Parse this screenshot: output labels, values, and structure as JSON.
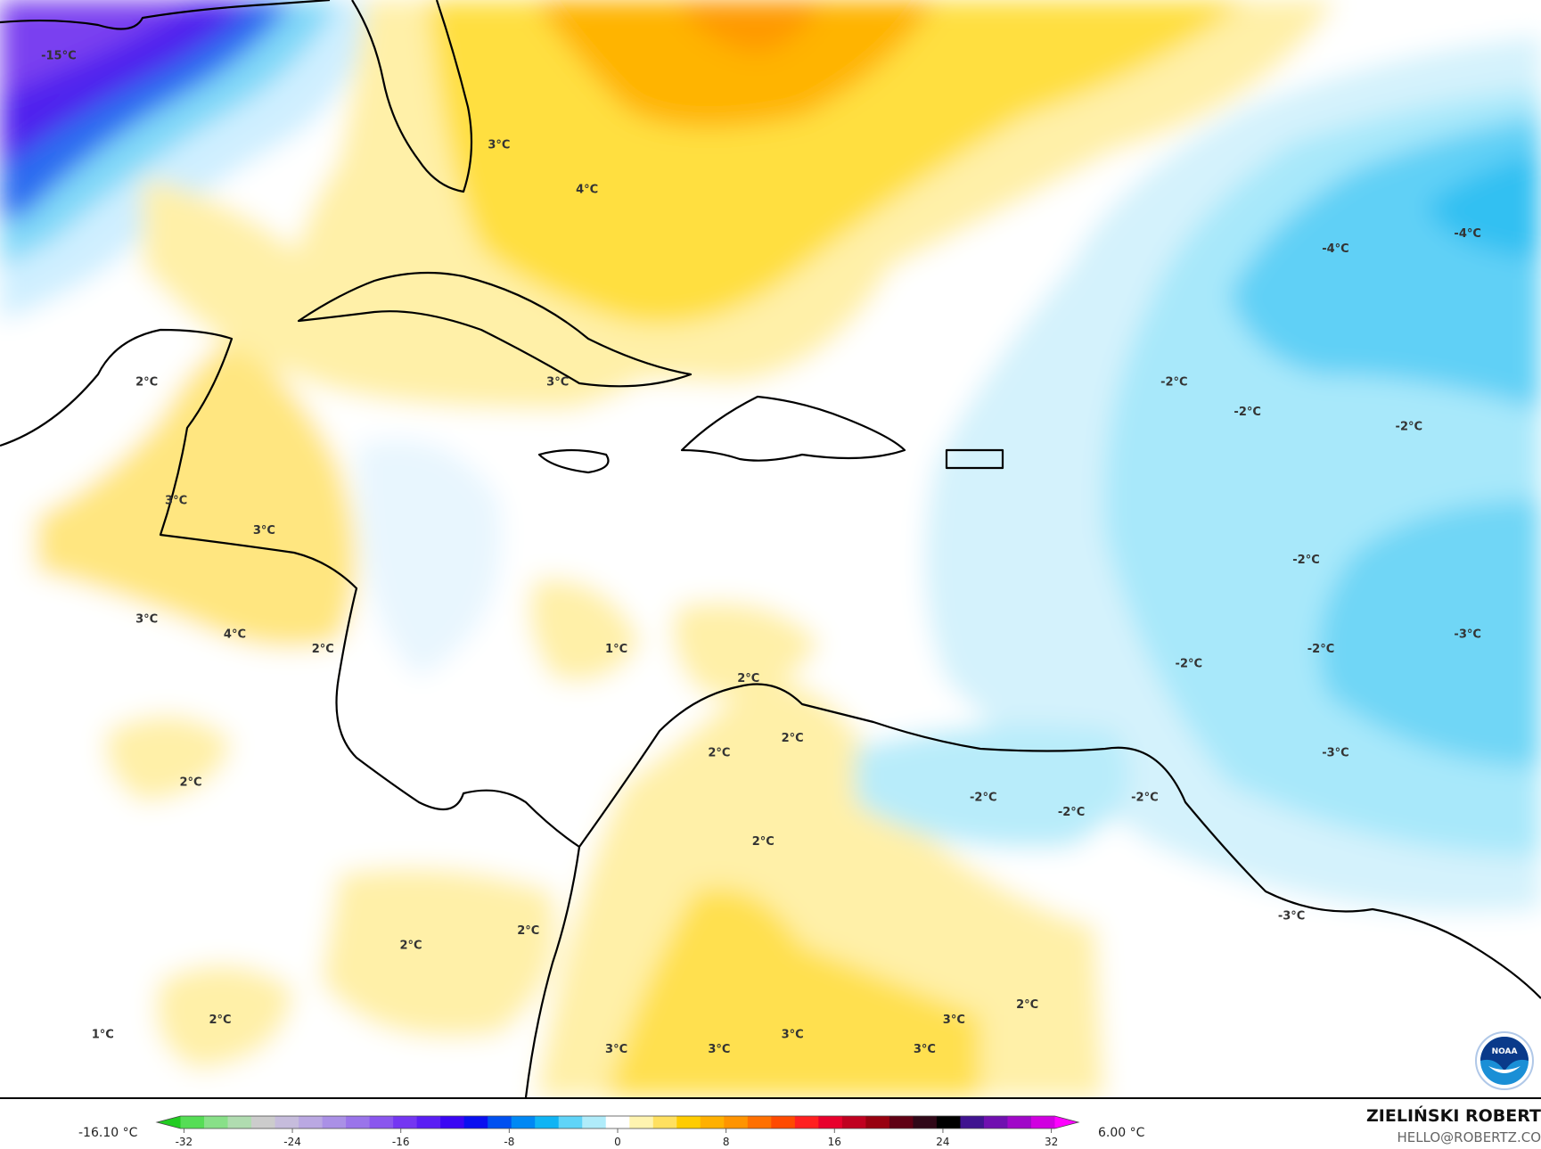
{
  "map": {
    "labels": [
      {
        "text": "-15°C",
        "lon": -96.5,
        "lat": 31.5
      },
      {
        "text": "3°C",
        "lon": -81.5,
        "lat": 28.5
      },
      {
        "text": "4°C",
        "lon": -78.5,
        "lat": 27.0
      },
      {
        "text": "2°C",
        "lon": -93.5,
        "lat": 20.5
      },
      {
        "text": "3°C",
        "lon": -79.5,
        "lat": 20.5
      },
      {
        "text": "3°C",
        "lon": -92.5,
        "lat": 16.5
      },
      {
        "text": "3°C",
        "lon": -89.5,
        "lat": 15.5
      },
      {
        "text": "3°C",
        "lon": -93.5,
        "lat": 12.5
      },
      {
        "text": "4°C",
        "lon": -90.5,
        "lat": 12.0
      },
      {
        "text": "2°C",
        "lon": -87.5,
        "lat": 11.5
      },
      {
        "text": "1°C",
        "lon": -77.5,
        "lat": 11.5
      },
      {
        "text": "2°C",
        "lon": -73.0,
        "lat": 10.5
      },
      {
        "text": "2°C",
        "lon": -74.0,
        "lat": 8.0
      },
      {
        "text": "2°C",
        "lon": -71.5,
        "lat": 8.5
      },
      {
        "text": "2°C",
        "lon": -92.0,
        "lat": 7.0
      },
      {
        "text": "2°C",
        "lon": -72.5,
        "lat": 5.0
      },
      {
        "text": "2°C",
        "lon": -84.5,
        "lat": 1.5
      },
      {
        "text": "2°C",
        "lon": -80.5,
        "lat": 2.0
      },
      {
        "text": "2°C",
        "lon": -91.0,
        "lat": -1.0
      },
      {
        "text": "1°C",
        "lon": -95.0,
        "lat": -1.5
      },
      {
        "text": "3°C",
        "lon": -77.5,
        "lat": -2.0
      },
      {
        "text": "3°C",
        "lon": -74.0,
        "lat": -2.0
      },
      {
        "text": "3°C",
        "lon": -71.5,
        "lat": -1.5
      },
      {
        "text": "3°C",
        "lon": -66.0,
        "lat": -1.0
      },
      {
        "text": "2°C",
        "lon": -63.5,
        "lat": -0.5
      },
      {
        "text": "3°C",
        "lon": -67.0,
        "lat": -2.0
      },
      {
        "text": "-4°C",
        "lon": -48.5,
        "lat": 25.5
      },
      {
        "text": "-4°C",
        "lon": -53.0,
        "lat": 25.0
      },
      {
        "text": "-2°C",
        "lon": -58.5,
        "lat": 20.5
      },
      {
        "text": "-2°C",
        "lon": -56.0,
        "lat": 19.5
      },
      {
        "text": "-2°C",
        "lon": -50.5,
        "lat": 19.0
      },
      {
        "text": "-2°C",
        "lon": -54.0,
        "lat": 14.5
      },
      {
        "text": "-3°C",
        "lon": -48.5,
        "lat": 12.0
      },
      {
        "text": "-2°C",
        "lon": -53.5,
        "lat": 11.5
      },
      {
        "text": "-2°C",
        "lon": -58.0,
        "lat": 11.0
      },
      {
        "text": "-3°C",
        "lon": -53.0,
        "lat": 8.0
      },
      {
        "text": "-2°C",
        "lon": -65.0,
        "lat": 6.5
      },
      {
        "text": "-2°C",
        "lon": -62.0,
        "lat": 6.0
      },
      {
        "text": "-2°C",
        "lon": -59.5,
        "lat": 6.5
      },
      {
        "text": "-3°C",
        "lon": -54.5,
        "lat": 2.5
      }
    ],
    "logo": "NOAA",
    "colors": {
      "land_border": "#000000",
      "contour": "#888888"
    }
  },
  "colorbar": {
    "min_label": "-16.10 °C",
    "max_label": "6.00 °C",
    "ticks": [
      "-32",
      "-24",
      "-16",
      "-8",
      "0",
      "8",
      "16",
      "24",
      "32"
    ],
    "tick_values": [
      -32,
      -24,
      -16,
      -8,
      0,
      8,
      16,
      24,
      32
    ],
    "range": [
      -34,
      34
    ],
    "colors": [
      "#22cc22",
      "#55dd55",
      "#88e088",
      "#b0dcb0",
      "#cccccc",
      "#c6bcdc",
      "#baa8e2",
      "#aa90e6",
      "#9a74ea",
      "#8a56ee",
      "#7436f2",
      "#5a1ef4",
      "#3a06f4",
      "#0a10f0",
      "#0050f0",
      "#0088f4",
      "#10b4f4",
      "#60d4f8",
      "#b0ecfa",
      "#ffffff",
      "#fff4b0",
      "#ffe060",
      "#ffcc00",
      "#ffb000",
      "#ff9400",
      "#ff7000",
      "#ff4a00",
      "#ff2020",
      "#e8002c",
      "#c00020",
      "#980010",
      "#600014",
      "#300818",
      "#000000",
      "#401490",
      "#7010b0",
      "#a008c8",
      "#d000e0",
      "#ff00ff"
    ]
  },
  "credits": {
    "author": "ZIELIŃSKI ROBERT",
    "email": "HELLO@ROBERTZ.CO"
  }
}
